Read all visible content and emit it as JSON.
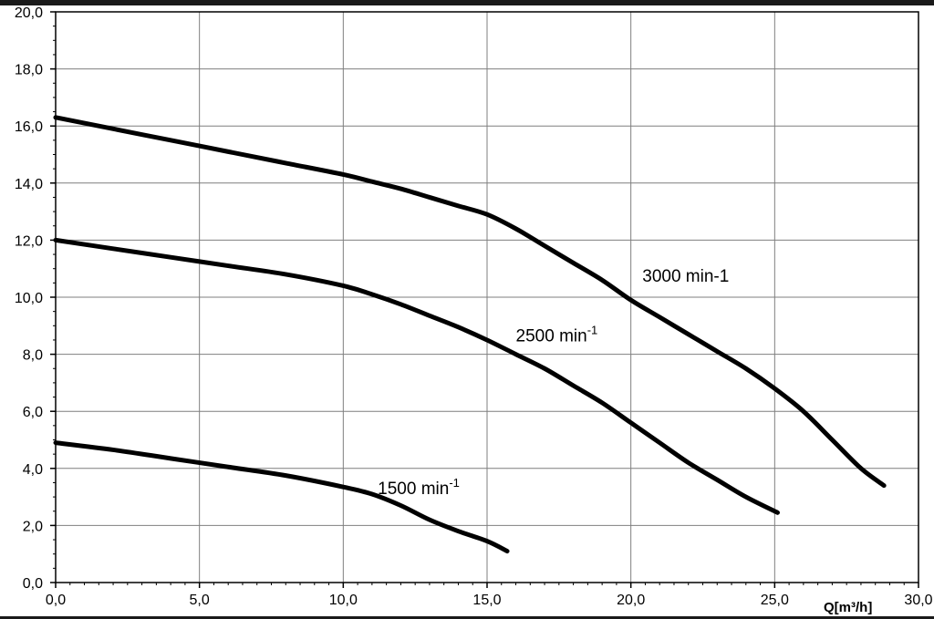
{
  "chart_data": {
    "type": "line",
    "xlabel": "Q[m³/h]",
    "ylabel": "",
    "title": "",
    "xlim": [
      0,
      30
    ],
    "ylim": [
      0,
      20
    ],
    "x_ticks": [
      "0,0",
      "5,0",
      "10,0",
      "15,0",
      "20,0",
      "25,0",
      "30,0"
    ],
    "y_ticks": [
      "0,0",
      "2,0",
      "4,0",
      "6,0",
      "8,0",
      "10,0",
      "12,0",
      "14,0",
      "16,0",
      "18,0",
      "20,0"
    ],
    "grid": true,
    "series": [
      {
        "name": "3000 min-1",
        "label_base": "3000 min-1",
        "label_sup": "",
        "x": [
          0,
          2,
          4,
          6,
          8,
          10,
          11,
          12,
          13,
          14,
          15,
          16,
          17,
          18,
          19,
          20,
          21,
          22,
          23,
          24,
          25,
          26,
          27,
          28,
          28.8
        ],
        "y": [
          16.3,
          15.9,
          15.5,
          15.1,
          14.7,
          14.3,
          14.05,
          13.8,
          13.5,
          13.2,
          12.9,
          12.4,
          11.8,
          11.2,
          10.6,
          9.9,
          9.3,
          8.7,
          8.1,
          7.5,
          6.8,
          6.0,
          5.0,
          4.0,
          3.4
        ],
        "label_x": 20.4,
        "label_y": 10.55
      },
      {
        "name": "2500 min-1",
        "label_base": "2500 min",
        "label_sup": "-1",
        "x": [
          0,
          2,
          4,
          6,
          8,
          10,
          11,
          12,
          13,
          14,
          15,
          16,
          17,
          18,
          19,
          20,
          21,
          22,
          23,
          24,
          25.1
        ],
        "y": [
          12.0,
          11.7,
          11.4,
          11.1,
          10.8,
          10.4,
          10.1,
          9.75,
          9.35,
          8.95,
          8.5,
          8.0,
          7.5,
          6.9,
          6.3,
          5.6,
          4.9,
          4.2,
          3.6,
          3.0,
          2.45
        ],
        "label_x": 16.0,
        "label_y": 8.45
      },
      {
        "name": "1500 min-1",
        "label_base": "1500 min",
        "label_sup": "-1",
        "x": [
          0,
          2,
          4,
          6,
          8,
          10,
          11,
          12,
          13,
          14,
          15,
          15.7
        ],
        "y": [
          4.9,
          4.65,
          4.35,
          4.05,
          3.75,
          3.35,
          3.1,
          2.7,
          2.2,
          1.8,
          1.45,
          1.1
        ],
        "label_x": 11.2,
        "label_y": 3.1
      }
    ]
  }
}
